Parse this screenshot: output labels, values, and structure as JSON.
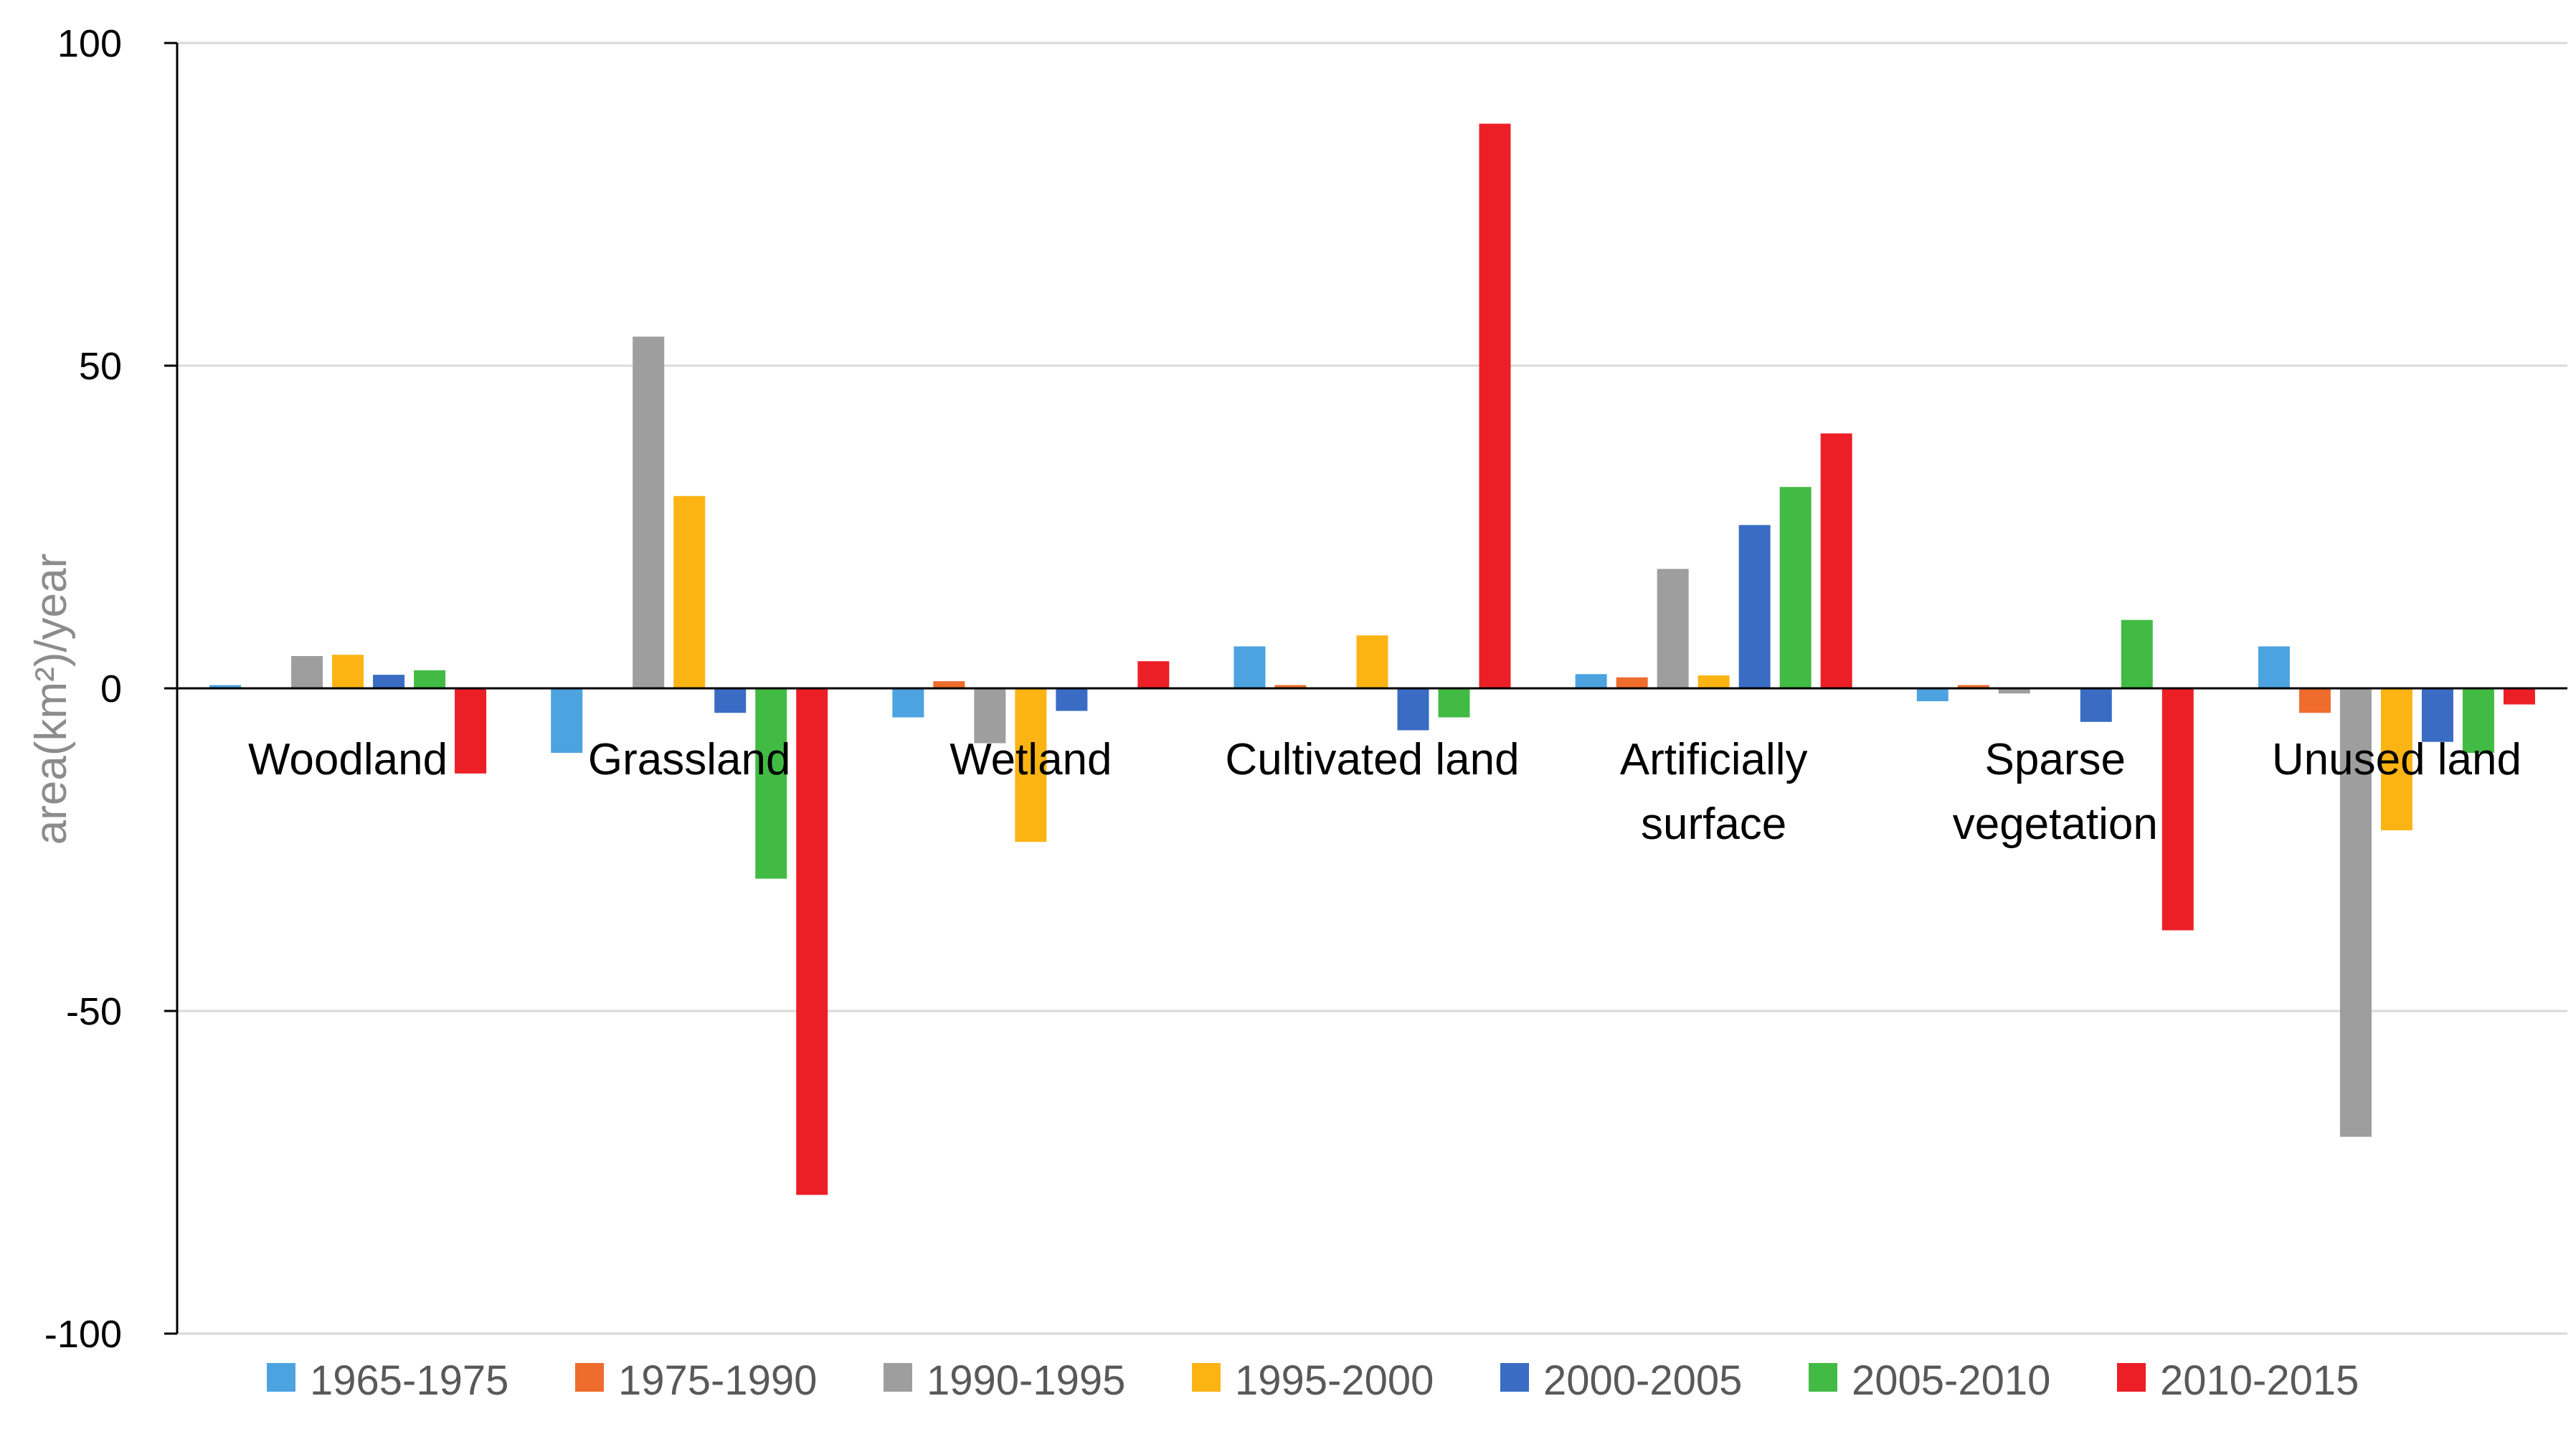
{
  "chart_data": {
    "type": "bar",
    "title": "",
    "xlabel": "",
    "ylabel": "area(km²)/year",
    "ylim": [
      -100,
      100
    ],
    "yticks": [
      {
        "value": 100,
        "label": "100"
      },
      {
        "value": 50,
        "label": "50"
      },
      {
        "value": 0,
        "label": "0"
      },
      {
        "value": -50,
        "label": "-50"
      },
      {
        "value": -100,
        "label": "-100"
      }
    ],
    "grid": true,
    "legend_position": "bottom",
    "categories": [
      {
        "name": "Woodland",
        "lines": [
          "Woodland"
        ]
      },
      {
        "name": "Grassland",
        "lines": [
          "Grassland"
        ]
      },
      {
        "name": "Wetland",
        "lines": [
          "Wetland"
        ]
      },
      {
        "name": "Cultivated land",
        "lines": [
          "Cultivated land"
        ]
      },
      {
        "name": "Artificially surface",
        "lines": [
          "Artificially",
          "surface"
        ]
      },
      {
        "name": "Sparse vegetation",
        "lines": [
          "Sparse",
          "vegetation"
        ]
      },
      {
        "name": "Unused land",
        "lines": [
          "Unused land"
        ]
      }
    ],
    "series": [
      {
        "name": "1965-1975",
        "color": "#4da3e0",
        "values": [
          0.5,
          -10,
          -4.5,
          6.5,
          2.2,
          -2,
          6.5
        ]
      },
      {
        "name": "1975-1990",
        "color": "#ee6c2d",
        "values": [
          0,
          0,
          1.1,
          0.5,
          1.7,
          0.5,
          -3.8
        ]
      },
      {
        "name": "1990-1995",
        "color": "#9e9e9e",
        "values": [
          5,
          54.5,
          -8.5,
          0,
          18.5,
          -0.8,
          -69.5
        ]
      },
      {
        "name": "1995-2000",
        "color": "#fcb415",
        "values": [
          5.2,
          29.8,
          -23.8,
          8.2,
          2,
          0,
          -22
        ]
      },
      {
        "name": "2000-2005",
        "color": "#3a6cc4",
        "values": [
          2.1,
          -3.8,
          -3.5,
          -6.5,
          25.3,
          -5.2,
          -8.3
        ]
      },
      {
        "name": "2005-2010",
        "color": "#42bb44",
        "values": [
          2.8,
          -29.5,
          0,
          -4.5,
          31.2,
          10.6,
          -10
        ]
      },
      {
        "name": "2010-2015",
        "color": "#ec1f27",
        "values": [
          -13.2,
          -78.5,
          4.2,
          87.5,
          39.5,
          -37.5,
          -2.5
        ]
      }
    ]
  }
}
